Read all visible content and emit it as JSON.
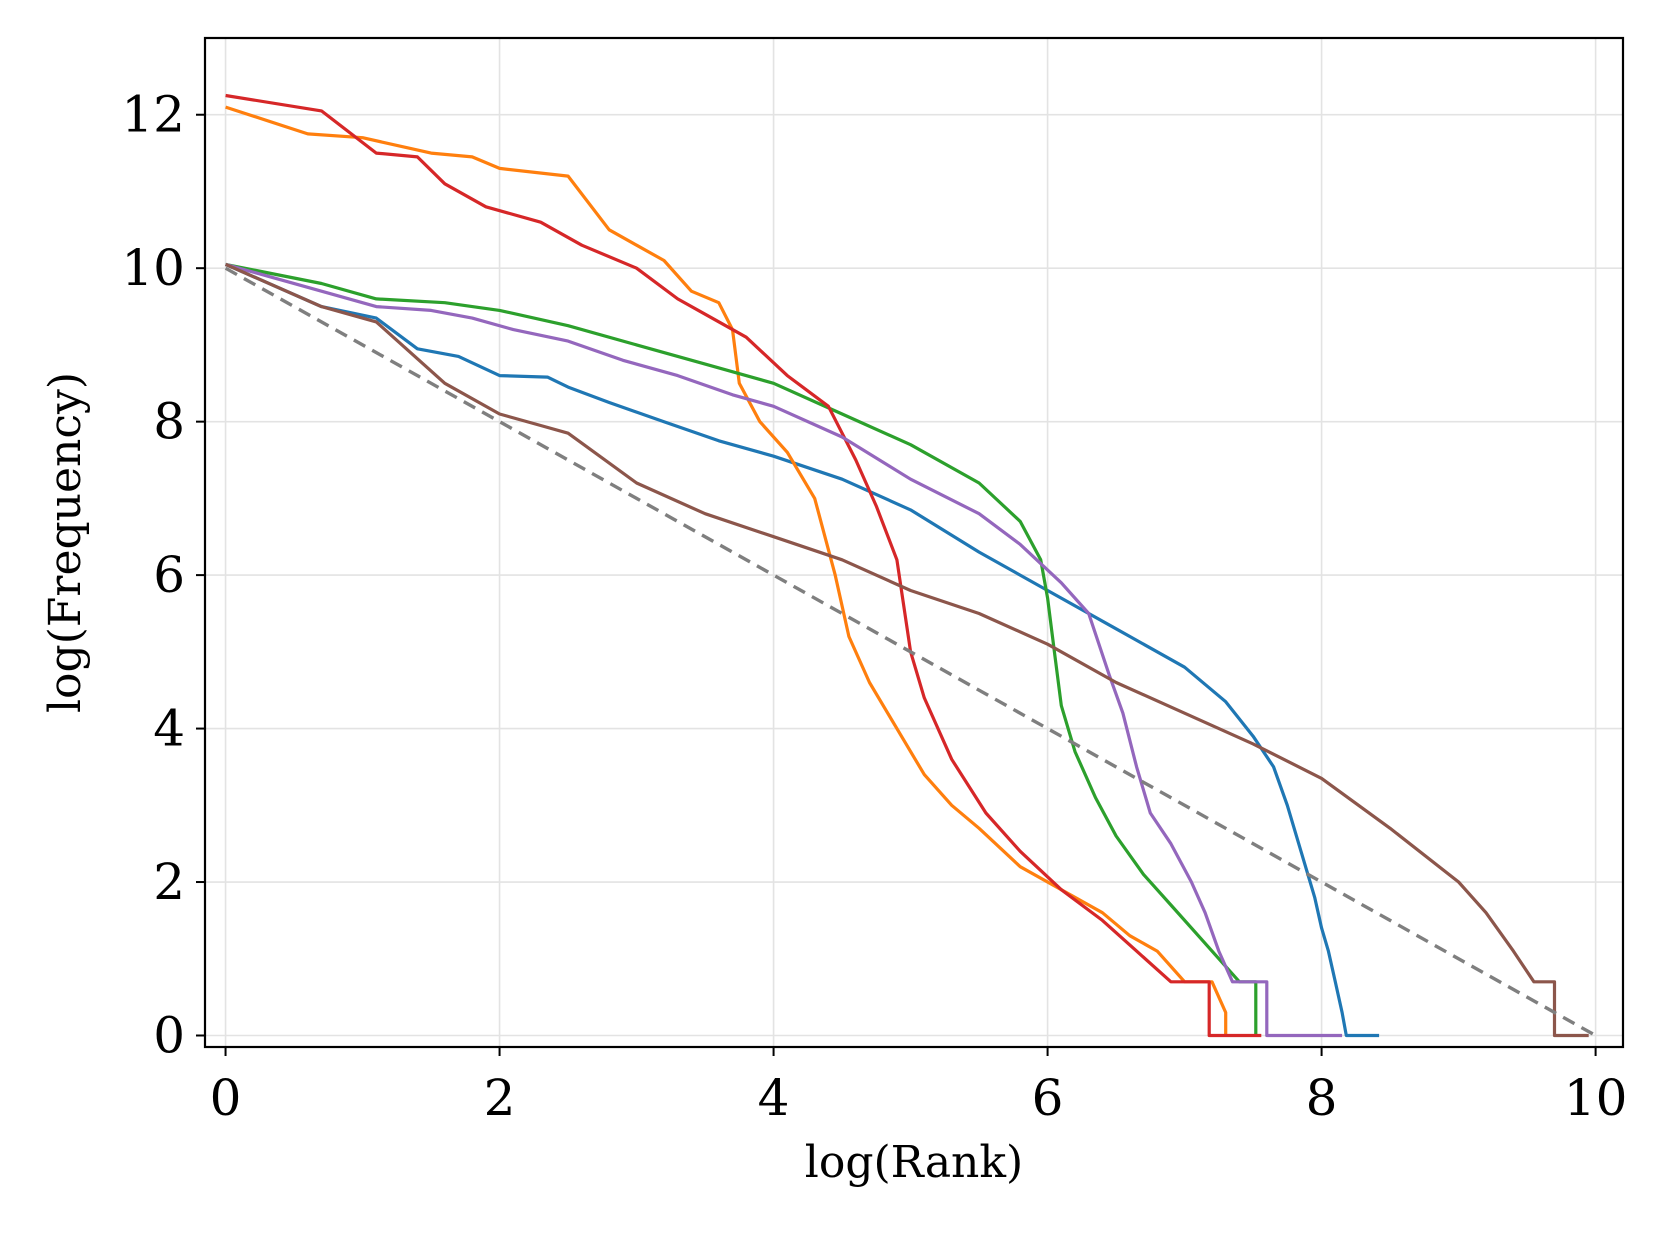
{
  "chart_data": {
    "type": "line",
    "title": "",
    "xlabel": "log(Rank)",
    "ylabel": "log(Frequency)",
    "xlim": [
      -0.15,
      10.2
    ],
    "ylim": [
      -0.15,
      13.0
    ],
    "xticks": [
      0,
      2,
      4,
      6,
      8,
      10
    ],
    "yticks": [
      0,
      2,
      4,
      6,
      8,
      10,
      12
    ],
    "grid": true,
    "legend": "none",
    "series": [
      {
        "name": "blue",
        "color": "#1f77b4",
        "step": false,
        "points": [
          [
            0,
            10.05
          ],
          [
            0.7,
            9.5
          ],
          [
            1.1,
            9.35
          ],
          [
            1.4,
            8.95
          ],
          [
            1.7,
            8.85
          ],
          [
            2.0,
            8.6
          ],
          [
            2.35,
            8.58
          ],
          [
            2.5,
            8.45
          ],
          [
            2.8,
            8.25
          ],
          [
            3.2,
            8.0
          ],
          [
            3.6,
            7.75
          ],
          [
            4.0,
            7.55
          ],
          [
            4.5,
            7.25
          ],
          [
            5.0,
            6.85
          ],
          [
            5.5,
            6.3
          ],
          [
            6.0,
            5.8
          ],
          [
            6.5,
            5.3
          ],
          [
            7.0,
            4.8
          ],
          [
            7.3,
            4.35
          ],
          [
            7.5,
            3.9
          ],
          [
            7.65,
            3.5
          ],
          [
            7.75,
            3.0
          ],
          [
            7.85,
            2.4
          ],
          [
            7.95,
            1.8
          ],
          [
            8.0,
            1.4
          ],
          [
            8.05,
            1.1
          ],
          [
            8.1,
            0.7
          ],
          [
            8.15,
            0.3
          ],
          [
            8.18,
            0
          ],
          [
            8.42,
            0
          ]
        ]
      },
      {
        "name": "orange",
        "color": "#ff7f0e",
        "step": false,
        "points": [
          [
            0,
            12.1
          ],
          [
            0.6,
            11.75
          ],
          [
            1.0,
            11.7
          ],
          [
            1.5,
            11.5
          ],
          [
            1.8,
            11.45
          ],
          [
            2.0,
            11.3
          ],
          [
            2.5,
            11.2
          ],
          [
            2.8,
            10.5
          ],
          [
            3.0,
            10.3
          ],
          [
            3.2,
            10.1
          ],
          [
            3.4,
            9.7
          ],
          [
            3.6,
            9.55
          ],
          [
            3.7,
            9.2
          ],
          [
            3.75,
            8.5
          ],
          [
            3.9,
            8.0
          ],
          [
            4.1,
            7.6
          ],
          [
            4.3,
            7.0
          ],
          [
            4.45,
            6.0
          ],
          [
            4.55,
            5.2
          ],
          [
            4.7,
            4.6
          ],
          [
            4.9,
            4.0
          ],
          [
            5.1,
            3.4
          ],
          [
            5.3,
            3.0
          ],
          [
            5.5,
            2.7
          ],
          [
            5.8,
            2.2
          ],
          [
            6.1,
            1.9
          ],
          [
            6.4,
            1.6
          ],
          [
            6.6,
            1.3
          ],
          [
            6.8,
            1.1
          ],
          [
            7.0,
            0.7
          ],
          [
            7.2,
            0.7
          ],
          [
            7.3,
            0.3
          ],
          [
            7.3,
            0
          ]
        ]
      },
      {
        "name": "green",
        "color": "#2ca02c",
        "step": false,
        "points": [
          [
            0,
            10.05
          ],
          [
            0.7,
            9.8
          ],
          [
            1.1,
            9.6
          ],
          [
            1.6,
            9.55
          ],
          [
            2.0,
            9.45
          ],
          [
            2.5,
            9.25
          ],
          [
            3.0,
            9.0
          ],
          [
            3.5,
            8.75
          ],
          [
            4.0,
            8.5
          ],
          [
            4.5,
            8.1
          ],
          [
            5.0,
            7.7
          ],
          [
            5.5,
            7.2
          ],
          [
            5.8,
            6.7
          ],
          [
            5.95,
            6.2
          ],
          [
            6.0,
            5.7
          ],
          [
            6.05,
            5.0
          ],
          [
            6.1,
            4.3
          ],
          [
            6.2,
            3.7
          ],
          [
            6.35,
            3.1
          ],
          [
            6.5,
            2.6
          ],
          [
            6.7,
            2.1
          ],
          [
            6.9,
            1.7
          ],
          [
            7.1,
            1.3
          ],
          [
            7.2,
            1.1
          ],
          [
            7.4,
            0.7
          ],
          [
            7.52,
            0.7
          ],
          [
            7.52,
            0
          ]
        ]
      },
      {
        "name": "red",
        "color": "#d62728",
        "step": false,
        "points": [
          [
            0,
            12.25
          ],
          [
            0.7,
            12.05
          ],
          [
            1.1,
            11.5
          ],
          [
            1.4,
            11.45
          ],
          [
            1.6,
            11.1
          ],
          [
            1.9,
            10.8
          ],
          [
            2.3,
            10.6
          ],
          [
            2.6,
            10.3
          ],
          [
            3.0,
            10.0
          ],
          [
            3.3,
            9.6
          ],
          [
            3.5,
            9.4
          ],
          [
            3.8,
            9.1
          ],
          [
            4.1,
            8.6
          ],
          [
            4.4,
            8.2
          ],
          [
            4.6,
            7.5
          ],
          [
            4.75,
            6.9
          ],
          [
            4.9,
            6.2
          ],
          [
            5.0,
            5.0
          ],
          [
            5.1,
            4.4
          ],
          [
            5.3,
            3.6
          ],
          [
            5.55,
            2.9
          ],
          [
            5.8,
            2.4
          ],
          [
            6.1,
            1.9
          ],
          [
            6.4,
            1.5
          ],
          [
            6.65,
            1.1
          ],
          [
            6.9,
            0.7
          ],
          [
            7.18,
            0.7
          ],
          [
            7.18,
            0
          ],
          [
            7.56,
            0
          ]
        ]
      },
      {
        "name": "purple",
        "color": "#9467bd",
        "step": false,
        "points": [
          [
            0,
            10.05
          ],
          [
            0.7,
            9.7
          ],
          [
            1.1,
            9.5
          ],
          [
            1.5,
            9.45
          ],
          [
            1.8,
            9.35
          ],
          [
            2.1,
            9.2
          ],
          [
            2.5,
            9.05
          ],
          [
            2.9,
            8.8
          ],
          [
            3.3,
            8.6
          ],
          [
            3.7,
            8.35
          ],
          [
            4.0,
            8.2
          ],
          [
            4.5,
            7.8
          ],
          [
            5.0,
            7.25
          ],
          [
            5.5,
            6.8
          ],
          [
            5.8,
            6.4
          ],
          [
            6.1,
            5.9
          ],
          [
            6.3,
            5.5
          ],
          [
            6.45,
            4.7
          ],
          [
            6.55,
            4.2
          ],
          [
            6.65,
            3.5
          ],
          [
            6.75,
            2.9
          ],
          [
            6.9,
            2.5
          ],
          [
            7.05,
            2.0
          ],
          [
            7.15,
            1.6
          ],
          [
            7.25,
            1.1
          ],
          [
            7.35,
            0.7
          ],
          [
            7.6,
            0.7
          ],
          [
            7.6,
            0
          ],
          [
            8.15,
            0
          ]
        ]
      },
      {
        "name": "brown",
        "color": "#8c564b",
        "step": false,
        "points": [
          [
            0,
            10.05
          ],
          [
            0.7,
            9.5
          ],
          [
            1.1,
            9.3
          ],
          [
            1.6,
            8.5
          ],
          [
            2.0,
            8.1
          ],
          [
            2.3,
            7.95
          ],
          [
            2.5,
            7.85
          ],
          [
            3.0,
            7.2
          ],
          [
            3.5,
            6.8
          ],
          [
            4.0,
            6.5
          ],
          [
            4.5,
            6.2
          ],
          [
            5.0,
            5.8
          ],
          [
            5.5,
            5.5
          ],
          [
            6.0,
            5.1
          ],
          [
            6.5,
            4.6
          ],
          [
            7.0,
            4.2
          ],
          [
            7.5,
            3.8
          ],
          [
            8.0,
            3.35
          ],
          [
            8.5,
            2.7
          ],
          [
            9.0,
            2.0
          ],
          [
            9.2,
            1.6
          ],
          [
            9.4,
            1.1
          ],
          [
            9.55,
            0.7
          ],
          [
            9.7,
            0.7
          ],
          [
            9.7,
            0
          ],
          [
            9.95,
            0
          ]
        ]
      },
      {
        "name": "reference",
        "color": "#7f7f7f",
        "dashed": true,
        "points": [
          [
            0,
            10
          ],
          [
            10,
            0
          ]
        ]
      }
    ]
  }
}
